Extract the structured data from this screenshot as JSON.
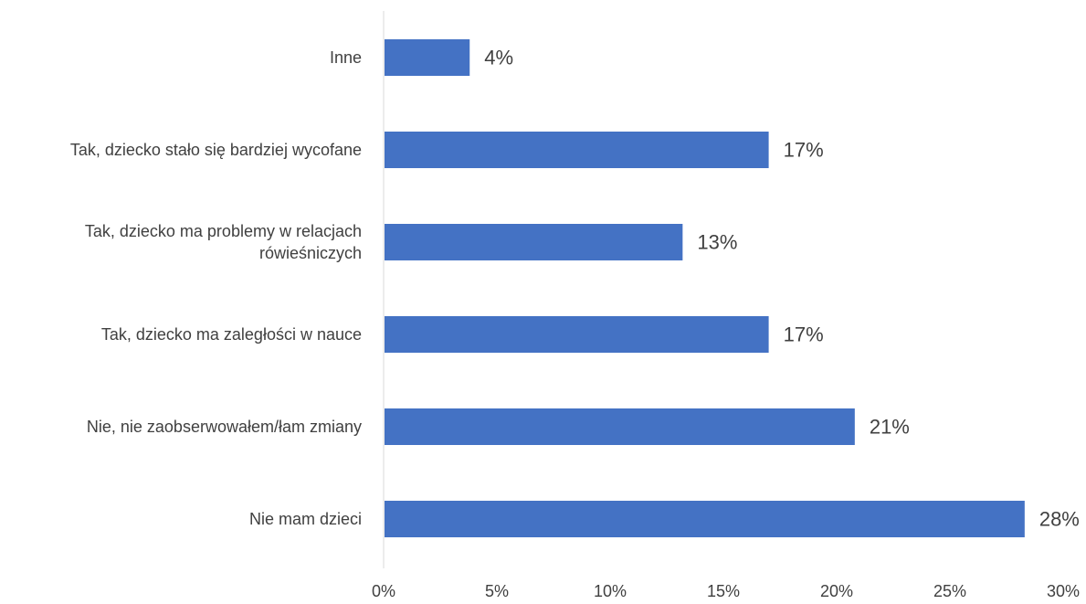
{
  "chart_data": {
    "type": "bar",
    "orientation": "horizontal",
    "categories": [
      "Inne",
      "Tak, dziecko stało się bardziej wycofane",
      "Tak, dziecko ma problemy w relacjach rówieśniczych",
      "Tak, dziecko ma zaległości w nauce",
      "Nie, nie zaobserwowałem/łam zmiany",
      "Nie mam dzieci"
    ],
    "category_lines": [
      [
        "Inne"
      ],
      [
        "Tak, dziecko stało się bardziej wycofane"
      ],
      [
        "Tak, dziecko ma problemy w relacjach",
        "rówieśniczych"
      ],
      [
        "Tak, dziecko ma zaległości w nauce"
      ],
      [
        "Nie, nie zaobserwowałem/łam zmiany"
      ],
      [
        "Nie mam dzieci"
      ]
    ],
    "values": [
      3.8,
      17.0,
      13.2,
      17.0,
      20.8,
      28.3
    ],
    "data_labels": [
      "4%",
      "17%",
      "13%",
      "17%",
      "21%",
      "28%"
    ],
    "xlim": [
      0,
      30
    ],
    "xticks": [
      0,
      5,
      10,
      15,
      20,
      25,
      30
    ],
    "xtick_labels": [
      "0%",
      "5%",
      "10%",
      "15%",
      "20%",
      "25%",
      "30%"
    ],
    "grid": false,
    "legend": "none",
    "bar_color": "#4472C4",
    "axis_color": "#D9D9D9"
  }
}
